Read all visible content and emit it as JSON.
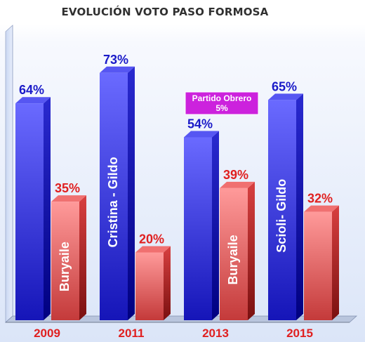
{
  "chart_data": {
    "type": "bar",
    "title": "EVOLUCIÓN VOTO PASO FORMOSA",
    "categories": [
      "2009",
      "2011",
      "2013",
      "2015"
    ],
    "ylim": [
      0,
      80
    ],
    "grid": false,
    "series": [
      {
        "values": [
          64,
          73,
          54,
          65
        ],
        "value_labels": [
          "64%",
          "73%",
          "54%",
          "65%"
        ],
        "bar_labels": [
          "",
          "Cristina - Gildo",
          "",
          "Scioli- Gildo"
        ],
        "color": "#2020e0"
      },
      {
        "values": [
          35,
          20,
          39,
          32
        ],
        "value_labels": [
          "35%",
          "20%",
          "39%",
          "32%"
        ],
        "bar_labels": [
          "Buryaile",
          "",
          "Buryaile",
          ""
        ],
        "color": "#e85050"
      }
    ],
    "annotations": [
      {
        "text": [
          "Partido Obrero",
          "5%"
        ],
        "category": "2013",
        "color": "#cc22dd"
      }
    ],
    "colors": {
      "value_blue": "#1a1ac8",
      "value_red": "#e02020",
      "category_label": "#e02020"
    }
  }
}
